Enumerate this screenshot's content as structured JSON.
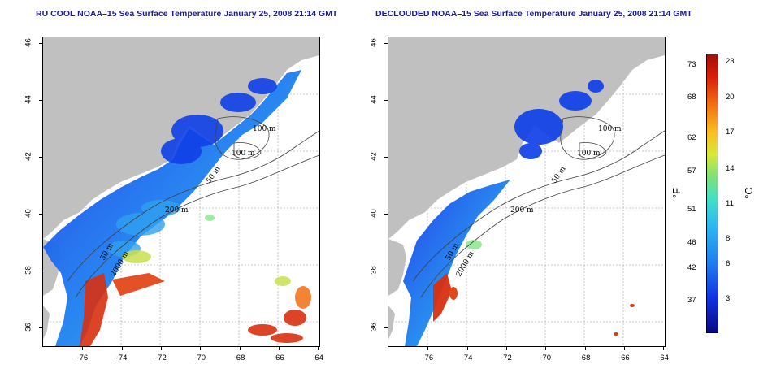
{
  "titles": {
    "left": "RU COOL NOAA–15 Sea Surface Temperature January 25, 2008 21:14 GMT",
    "right": "DECLOUDED NOAA–15 Sea Surface Temperature January 25, 2008 21:14 GMT"
  },
  "axes": {
    "lat_ticks": [
      "46",
      "44",
      "42",
      "40",
      "38",
      "36"
    ],
    "lon_ticks": [
      "-76",
      "-74",
      "-72",
      "-70",
      "-68",
      "-66",
      "-64"
    ]
  },
  "contour_labels": {
    "m100a": "100 m",
    "m100b": "100 m",
    "m50a": "50 m",
    "m200": "200 m",
    "m50b": "50 m",
    "m2000": "2000 m"
  },
  "colorbar": {
    "fahrenheit_ticks": [
      "73",
      "68",
      "62",
      "57",
      "51",
      "46",
      "42",
      "37"
    ],
    "celsius_ticks": [
      "23",
      "20",
      "17",
      "14",
      "11",
      "8",
      "6",
      "3"
    ],
    "unit_f": "°F",
    "unit_c": "°C"
  },
  "colors": {
    "land": "#c0c0c0",
    "title": "#1a1aa8",
    "cold": "#1030e0",
    "warm": "#d82008"
  }
}
